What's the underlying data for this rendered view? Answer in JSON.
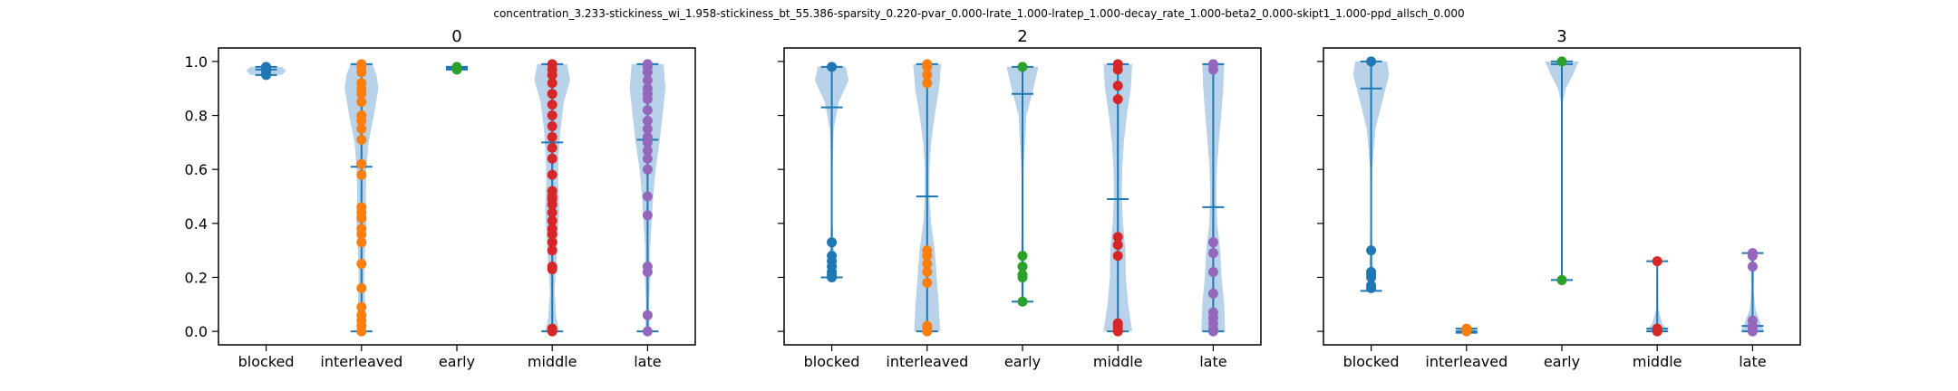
{
  "chart_data": {
    "type": "violin",
    "suptitle": "concentration_3.233-stickiness_wi_1.958-stickiness_bt_55.386-sparsity_0.220-pvar_0.000-lrate_1.000-lratep_1.000-decay_rate_1.000-beta2_0.000-skipt1_1.000-ppd_allsch_0.000",
    "categories": [
      "blocked",
      "interleaved",
      "early",
      "middle",
      "late"
    ],
    "ylim": [
      -0.05,
      1.05
    ],
    "yticks": [
      "0.0",
      "0.2",
      "0.4",
      "0.6",
      "0.8",
      "1.0"
    ],
    "sharey": true,
    "colors": {
      "violin_fill": "#a6c8e4",
      "line": "#1f77b4",
      "points": [
        "#1f77b4",
        "#ff7f0e",
        "#2ca02c",
        "#d62728",
        "#9467bd"
      ]
    },
    "panels": [
      {
        "title": "0",
        "groups": [
          {
            "name": "blocked",
            "min": 0.95,
            "max": 0.98,
            "mean": 0.97,
            "points": [
              0.95,
              0.96,
              0.97,
              0.98
            ],
            "density": [
              [
                0.95,
                0.8
              ],
              [
                0.965,
                1.0
              ],
              [
                0.98,
                0.8
              ]
            ]
          },
          {
            "name": "interleaved",
            "min": 0.0,
            "max": 0.99,
            "mean": 0.61,
            "points": [
              0.0,
              0.02,
              0.04,
              0.06,
              0.09,
              0.16,
              0.25,
              0.33,
              0.36,
              0.38,
              0.42,
              0.44,
              0.46,
              0.58,
              0.62,
              0.71,
              0.75,
              0.78,
              0.8,
              0.85,
              0.88,
              0.9,
              0.92,
              0.96,
              0.98,
              0.99
            ],
            "density": [
              [
                0.0,
                0.2
              ],
              [
                0.1,
                0.18
              ],
              [
                0.2,
                0.14
              ],
              [
                0.3,
                0.18
              ],
              [
                0.4,
                0.25
              ],
              [
                0.5,
                0.22
              ],
              [
                0.6,
                0.24
              ],
              [
                0.7,
                0.35
              ],
              [
                0.8,
                0.62
              ],
              [
                0.9,
                0.85
              ],
              [
                0.95,
                0.75
              ],
              [
                0.99,
                0.55
              ]
            ]
          },
          {
            "name": "early",
            "min": 0.97,
            "max": 0.98,
            "mean": 0.975,
            "points": [
              0.97,
              0.98
            ],
            "density": [
              [
                0.97,
                0.5
              ],
              [
                0.975,
                0.55
              ],
              [
                0.98,
                0.5
              ]
            ]
          },
          {
            "name": "middle",
            "min": 0.0,
            "max": 0.99,
            "mean": 0.7,
            "points": [
              0.0,
              0.01,
              0.23,
              0.24,
              0.3,
              0.33,
              0.36,
              0.38,
              0.41,
              0.44,
              0.47,
              0.49,
              0.5,
              0.52,
              0.58,
              0.64,
              0.68,
              0.72,
              0.76,
              0.8,
              0.84,
              0.88,
              0.92,
              0.95,
              0.97,
              0.99
            ],
            "density": [
              [
                0.0,
                0.35
              ],
              [
                0.05,
                0.2
              ],
              [
                0.15,
                0.12
              ],
              [
                0.25,
                0.2
              ],
              [
                0.35,
                0.28
              ],
              [
                0.45,
                0.35
              ],
              [
                0.55,
                0.3
              ],
              [
                0.65,
                0.32
              ],
              [
                0.75,
                0.42
              ],
              [
                0.85,
                0.58
              ],
              [
                0.93,
                0.9
              ],
              [
                0.99,
                0.75
              ]
            ]
          },
          {
            "name": "late",
            "min": 0.0,
            "max": 0.99,
            "mean": 0.71,
            "points": [
              0.0,
              0.06,
              0.22,
              0.24,
              0.43,
              0.5,
              0.6,
              0.64,
              0.67,
              0.7,
              0.72,
              0.75,
              0.78,
              0.82,
              0.86,
              0.88,
              0.9,
              0.93,
              0.96,
              0.98,
              0.99
            ],
            "density": [
              [
                0.0,
                0.12
              ],
              [
                0.1,
                0.08
              ],
              [
                0.2,
                0.14
              ],
              [
                0.3,
                0.12
              ],
              [
                0.4,
                0.2
              ],
              [
                0.5,
                0.28
              ],
              [
                0.6,
                0.4
              ],
              [
                0.7,
                0.6
              ],
              [
                0.8,
                0.75
              ],
              [
                0.9,
                0.9
              ],
              [
                0.99,
                0.8
              ]
            ]
          }
        ]
      },
      {
        "title": "2",
        "groups": [
          {
            "name": "blocked",
            "min": 0.2,
            "max": 0.98,
            "mean": 0.83,
            "points": [
              0.2,
              0.21,
              0.22,
              0.24,
              0.26,
              0.28,
              0.33,
              0.98
            ],
            "density": [
              [
                0.2,
                0.22
              ],
              [
                0.3,
                0.12
              ],
              [
                0.4,
                0.04
              ],
              [
                0.6,
                0.03
              ],
              [
                0.75,
                0.1
              ],
              [
                0.85,
                0.35
              ],
              [
                0.93,
                0.85
              ],
              [
                0.98,
                0.7
              ]
            ]
          },
          {
            "name": "interleaved",
            "min": 0.0,
            "max": 0.99,
            "mean": 0.5,
            "points": [
              0.0,
              0.01,
              0.02,
              0.18,
              0.22,
              0.25,
              0.28,
              0.3,
              0.92,
              0.95,
              0.98,
              0.99
            ],
            "density": [
              [
                0.0,
                0.65
              ],
              [
                0.1,
                0.58
              ],
              [
                0.2,
                0.48
              ],
              [
                0.3,
                0.38
              ],
              [
                0.4,
                0.2
              ],
              [
                0.5,
                0.12
              ],
              [
                0.6,
                0.12
              ],
              [
                0.7,
                0.2
              ],
              [
                0.8,
                0.38
              ],
              [
                0.9,
                0.6
              ],
              [
                0.99,
                0.7
              ]
            ]
          },
          {
            "name": "early",
            "min": 0.11,
            "max": 0.98,
            "mean": 0.88,
            "points": [
              0.11,
              0.2,
              0.21,
              0.24,
              0.28,
              0.98
            ],
            "density": [
              [
                0.11,
                0.06
              ],
              [
                0.25,
                0.08
              ],
              [
                0.4,
                0.03
              ],
              [
                0.6,
                0.05
              ],
              [
                0.8,
                0.2
              ],
              [
                0.9,
                0.55
              ],
              [
                0.98,
                0.8
              ]
            ]
          },
          {
            "name": "middle",
            "min": 0.0,
            "max": 0.99,
            "mean": 0.49,
            "points": [
              0.0,
              0.01,
              0.02,
              0.03,
              0.28,
              0.32,
              0.35,
              0.86,
              0.91,
              0.97,
              0.99
            ],
            "density": [
              [
                0.0,
                0.72
              ],
              [
                0.1,
                0.52
              ],
              [
                0.2,
                0.4
              ],
              [
                0.3,
                0.38
              ],
              [
                0.4,
                0.26
              ],
              [
                0.5,
                0.2
              ],
              [
                0.6,
                0.22
              ],
              [
                0.7,
                0.3
              ],
              [
                0.8,
                0.45
              ],
              [
                0.9,
                0.65
              ],
              [
                0.99,
                0.72
              ]
            ]
          },
          {
            "name": "late",
            "min": 0.0,
            "max": 0.99,
            "mean": 0.46,
            "points": [
              0.0,
              0.01,
              0.03,
              0.05,
              0.07,
              0.14,
              0.22,
              0.29,
              0.33,
              0.97,
              0.99
            ],
            "density": [
              [
                0.0,
                0.6
              ],
              [
                0.1,
                0.55
              ],
              [
                0.2,
                0.42
              ],
              [
                0.3,
                0.35
              ],
              [
                0.4,
                0.2
              ],
              [
                0.5,
                0.15
              ],
              [
                0.6,
                0.18
              ],
              [
                0.7,
                0.28
              ],
              [
                0.8,
                0.4
              ],
              [
                0.9,
                0.5
              ],
              [
                0.99,
                0.55
              ]
            ]
          }
        ]
      },
      {
        "title": "3",
        "groups": [
          {
            "name": "blocked",
            "min": 0.15,
            "max": 1.0,
            "mean": 0.9,
            "points": [
              0.16,
              0.17,
              0.2,
              0.21,
              0.22,
              0.3,
              1.0
            ],
            "density": [
              [
                0.15,
                0.12
              ],
              [
                0.25,
                0.08
              ],
              [
                0.4,
                0.03
              ],
              [
                0.6,
                0.05
              ],
              [
                0.75,
                0.22
              ],
              [
                0.85,
                0.55
              ],
              [
                0.95,
                0.9
              ],
              [
                1.0,
                0.8
              ]
            ]
          },
          {
            "name": "interleaved",
            "min": -0.005,
            "max": 0.01,
            "mean": 0.0,
            "points": [
              0.0,
              0.01
            ],
            "density": [
              [
                -0.005,
                0.35
              ],
              [
                0.002,
                0.45
              ],
              [
                0.01,
                0.35
              ]
            ]
          },
          {
            "name": "early",
            "min": 0.19,
            "max": 1.0,
            "mean": 0.99,
            "points": [
              0.19,
              1.0
            ],
            "density": [
              [
                0.19,
                0.02
              ],
              [
                0.5,
                0.02
              ],
              [
                0.85,
                0.05
              ],
              [
                0.9,
                0.2
              ],
              [
                0.95,
                0.55
              ],
              [
                1.0,
                0.85
              ]
            ]
          },
          {
            "name": "middle",
            "min": 0.0,
            "max": 0.26,
            "mean": 0.01,
            "points": [
              0.0,
              0.005,
              0.01,
              0.26
            ],
            "density": [
              [
                0.0,
                0.55
              ],
              [
                0.03,
                0.25
              ],
              [
                0.08,
                0.06
              ],
              [
                0.2,
                0.03
              ],
              [
                0.26,
                0.02
              ]
            ]
          },
          {
            "name": "late",
            "min": 0.0,
            "max": 0.29,
            "mean": 0.02,
            "points": [
              0.0,
              0.01,
              0.02,
              0.04,
              0.24,
              0.28,
              0.29
            ],
            "density": [
              [
                0.0,
                0.6
              ],
              [
                0.03,
                0.4
              ],
              [
                0.08,
                0.15
              ],
              [
                0.15,
                0.06
              ],
              [
                0.24,
                0.08
              ],
              [
                0.29,
                0.06
              ]
            ]
          }
        ]
      }
    ]
  }
}
